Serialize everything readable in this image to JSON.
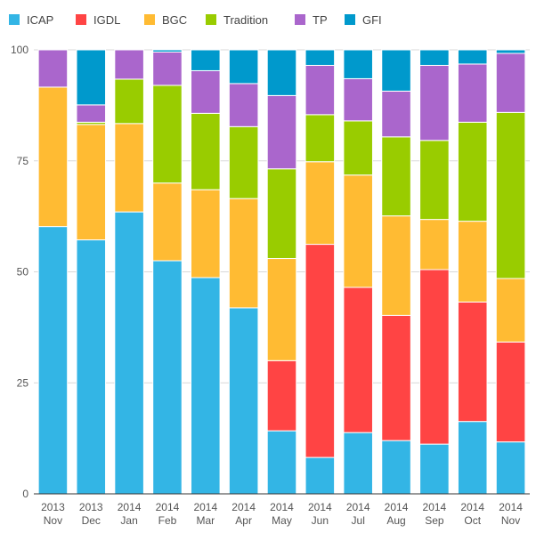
{
  "chart_data": {
    "type": "bar",
    "stacked": true,
    "categories": [
      [
        "2013",
        "Nov"
      ],
      [
        "2013",
        "Dec"
      ],
      [
        "2014",
        "Jan"
      ],
      [
        "2014",
        "Feb"
      ],
      [
        "2014",
        "Mar"
      ],
      [
        "2014",
        "Apr"
      ],
      [
        "2014",
        "May"
      ],
      [
        "2014",
        "Jun"
      ],
      [
        "2014",
        "Jul"
      ],
      [
        "2014",
        "Aug"
      ],
      [
        "2014",
        "Sep"
      ],
      [
        "2014",
        "Oct"
      ],
      [
        "2014",
        "Nov"
      ]
    ],
    "series": [
      {
        "name": "ICAP",
        "color": "#33b5e5",
        "values": [
          60.2,
          57.2,
          63.5,
          52.5,
          48.7,
          41.9,
          14.2,
          8.2,
          13.8,
          12.0,
          11.2,
          16.3,
          11.7
        ]
      },
      {
        "name": "IGDL",
        "color": "#ff4444",
        "values": [
          0,
          0,
          0,
          0,
          0,
          0,
          15.8,
          48.0,
          32.7,
          28.2,
          39.3,
          26.9,
          22.5
        ]
      },
      {
        "name": "BGC",
        "color": "#ffbb33",
        "values": [
          31.4,
          26.0,
          19.9,
          17.5,
          19.8,
          24.6,
          23.0,
          18.6,
          25.3,
          22.4,
          11.3,
          18.2,
          14.3
        ]
      },
      {
        "name": "Tradition",
        "color": "#99cc00",
        "values": [
          0,
          0.5,
          10.0,
          22.0,
          17.2,
          16.2,
          20.2,
          10.6,
          12.2,
          17.8,
          17.8,
          22.3,
          37.4
        ]
      },
      {
        "name": "TP",
        "color": "#aa66cc",
        "values": [
          8.4,
          3.9,
          6.6,
          7.5,
          9.6,
          9.7,
          16.5,
          11.1,
          9.5,
          10.3,
          16.9,
          13.1,
          13.3
        ]
      },
      {
        "name": "GFI",
        "color": "#0099cc",
        "values": [
          0,
          12.4,
          0,
          0.5,
          4.7,
          7.6,
          10.3,
          3.5,
          6.5,
          9.3,
          3.5,
          3.2,
          0.8
        ]
      }
    ],
    "ylim": [
      0,
      100
    ],
    "yticks": [
      "0",
      "25",
      "50",
      "75",
      "100"
    ],
    "ytick_values": [
      0,
      25,
      50,
      75,
      100
    ],
    "title": "",
    "xlabel": "",
    "ylabel": "",
    "grid": true,
    "legend_position": "top-left"
  }
}
